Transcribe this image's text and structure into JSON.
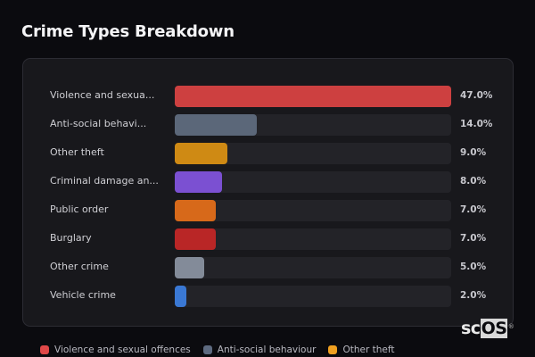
{
  "header": {
    "title": "Crime Types Breakdown"
  },
  "rows": [
    {
      "label": "Violence and sexua...",
      "value": "47.0%",
      "pct": 47.0,
      "color": "#cd4040"
    },
    {
      "label": "Anti-social behavi...",
      "value": "14.0%",
      "pct": 14.0,
      "color": "#5b6779"
    },
    {
      "label": "Other theft",
      "value": "9.0%",
      "pct": 9.0,
      "color": "#cf8a14"
    },
    {
      "label": "Criminal damage an...",
      "value": "8.0%",
      "pct": 8.0,
      "color": "#7b50d2"
    },
    {
      "label": "Public order",
      "value": "7.0%",
      "pct": 7.0,
      "color": "#d7691a"
    },
    {
      "label": "Burglary",
      "value": "7.0%",
      "pct": 7.0,
      "color": "#b92626"
    },
    {
      "label": "Other crime",
      "value": "5.0%",
      "pct": 5.0,
      "color": "#838b99"
    },
    {
      "label": "Vehicle crime",
      "value": "2.0%",
      "pct": 2.0,
      "color": "#3a78d4"
    }
  ],
  "legend": [
    {
      "label": "Violence and sexual offences",
      "color": "#e04848"
    },
    {
      "label": "Anti-social behaviour",
      "color": "#5d6a80"
    },
    {
      "label": "Other theft",
      "color": "#f0a020"
    }
  ],
  "logo": {
    "text_a": "sc",
    "text_b": "OS",
    "reg": "®"
  },
  "chart_data": {
    "type": "bar",
    "orientation": "horizontal",
    "title": "Crime Types Breakdown",
    "categories": [
      "Violence and sexual offences",
      "Anti-social behaviour",
      "Other theft",
      "Criminal damage and arson",
      "Public order",
      "Burglary",
      "Other crime",
      "Vehicle crime"
    ],
    "category_labels_shown": [
      "Violence and sexua...",
      "Anti-social behavi...",
      "Other theft",
      "Criminal damage an...",
      "Public order",
      "Burglary",
      "Other crime",
      "Vehicle crime"
    ],
    "values": [
      47.0,
      14.0,
      9.0,
      8.0,
      7.0,
      7.0,
      5.0,
      2.0
    ],
    "value_labels": [
      "47.0%",
      "14.0%",
      "9.0%",
      "8.0%",
      "7.0%",
      "7.0%",
      "5.0%",
      "2.0%"
    ],
    "colors": [
      "#cd4040",
      "#5b6779",
      "#cf8a14",
      "#7b50d2",
      "#d7691a",
      "#b92626",
      "#838b99",
      "#3a78d4"
    ],
    "xlabel": "",
    "ylabel": "",
    "unit": "%",
    "grid": false,
    "legend": [
      "Violence and sexual offences",
      "Anti-social behaviour",
      "Other theft"
    ],
    "legend_position": "bottom"
  }
}
